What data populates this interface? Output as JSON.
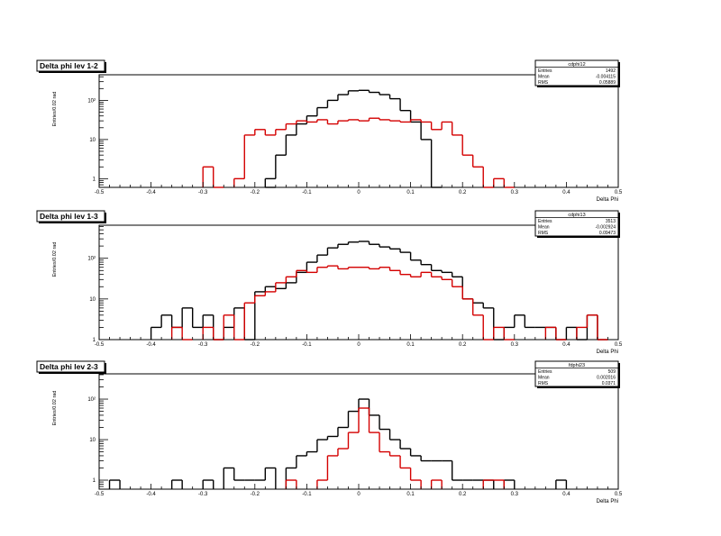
{
  "chart_data": [
    {
      "type": "histogram",
      "title": "Delta phi lev 1-2",
      "xlabel": "Delta Phi",
      "ylabel": "Entries/0.02 rad",
      "xlim": [
        -0.5,
        0.5
      ],
      "ylim": [
        0.6,
        450
      ],
      "yscale": "log",
      "bin_width": 0.02,
      "x_ticks": [
        "-0.5",
        "-0.4",
        "-0.3",
        "-0.2",
        "-0.1",
        "0",
        "0.1",
        "0.2",
        "0.3",
        "0.4",
        "0.5"
      ],
      "y_ticks": [
        {
          "v": 1,
          "label": "1"
        },
        {
          "v": 10,
          "label": "10"
        },
        {
          "v": 100,
          "label": "10²"
        }
      ],
      "stats": {
        "name": "cdphi12",
        "rows": [
          [
            "Entries",
            "1492"
          ],
          [
            "Mean",
            "-0.004115"
          ],
          [
            "RMS",
            "0.05889"
          ]
        ]
      },
      "series": [
        {
          "color": "#000000",
          "bins": [
            {
              "x0": -0.18,
              "y": 0.6
            },
            {
              "x0": -0.18,
              "y": 1
            },
            {
              "x0": -0.16,
              "y": 4
            },
            {
              "x0": -0.14,
              "y": 13
            },
            {
              "x0": -0.12,
              "y": 25
            },
            {
              "x0": -0.1,
              "y": 40
            },
            {
              "x0": -0.08,
              "y": 65
            },
            {
              "x0": -0.06,
              "y": 100
            },
            {
              "x0": -0.04,
              "y": 140
            },
            {
              "x0": -0.02,
              "y": 175
            },
            {
              "x0": 0.0,
              "y": 180
            },
            {
              "x0": 0.02,
              "y": 160
            },
            {
              "x0": 0.04,
              "y": 140
            },
            {
              "x0": 0.06,
              "y": 110
            },
            {
              "x0": 0.08,
              "y": 55
            },
            {
              "x0": 0.1,
              "y": 28
            },
            {
              "x0": 0.12,
              "y": 10
            },
            {
              "x0": 0.14,
              "y": 0.6
            }
          ]
        },
        {
          "color": "#d40000",
          "bins": [
            {
              "x0": -0.3,
              "y": 2
            },
            {
              "x0": -0.28,
              "y": 0.6
            },
            {
              "x0": -0.24,
              "y": 1
            },
            {
              "x0": -0.22,
              "y": 13
            },
            {
              "x0": -0.2,
              "y": 18
            },
            {
              "x0": -0.18,
              "y": 13
            },
            {
              "x0": -0.16,
              "y": 18
            },
            {
              "x0": -0.14,
              "y": 25
            },
            {
              "x0": -0.12,
              "y": 30
            },
            {
              "x0": -0.1,
              "y": 28
            },
            {
              "x0": -0.08,
              "y": 32
            },
            {
              "x0": -0.06,
              "y": 25
            },
            {
              "x0": -0.04,
              "y": 30
            },
            {
              "x0": -0.02,
              "y": 32
            },
            {
              "x0": 0.0,
              "y": 30
            },
            {
              "x0": 0.02,
              "y": 35
            },
            {
              "x0": 0.04,
              "y": 32
            },
            {
              "x0": 0.06,
              "y": 30
            },
            {
              "x0": 0.08,
              "y": 28
            },
            {
              "x0": 0.1,
              "y": 32
            },
            {
              "x0": 0.12,
              "y": 28
            },
            {
              "x0": 0.14,
              "y": 18
            },
            {
              "x0": 0.16,
              "y": 28
            },
            {
              "x0": 0.18,
              "y": 13
            },
            {
              "x0": 0.2,
              "y": 4
            },
            {
              "x0": 0.22,
              "y": 2
            },
            {
              "x0": 0.24,
              "y": 0.6
            },
            {
              "x0": 0.26,
              "y": 1
            },
            {
              "x0": 0.28,
              "y": 0.6
            }
          ]
        }
      ]
    },
    {
      "type": "histogram",
      "title": "Delta phi lev 1-3",
      "xlabel": "Delta Phi",
      "ylabel": "Entries/0.02 rad",
      "xlim": [
        -0.5,
        0.5
      ],
      "ylim": [
        1,
        650
      ],
      "yscale": "log",
      "bin_width": 0.02,
      "x_ticks": [
        "-0.5",
        "-0.4",
        "-0.3",
        "-0.2",
        "-0.1",
        "0",
        "0.1",
        "0.2",
        "0.3",
        "0.4",
        "0.5"
      ],
      "y_ticks": [
        {
          "v": 1,
          "label": "1"
        },
        {
          "v": 10,
          "label": "10"
        },
        {
          "v": 100,
          "label": "10²"
        }
      ],
      "stats": {
        "name": "cdphi13",
        "rows": [
          [
            "Entries",
            "3513"
          ],
          [
            "Mean",
            "-0.002924"
          ],
          [
            "RMS",
            "0.09473"
          ]
        ]
      },
      "series": [
        {
          "color": "#000000",
          "bins": [
            {
              "x0": -0.4,
              "y": 2
            },
            {
              "x0": -0.38,
              "y": 4
            },
            {
              "x0": -0.36,
              "y": 2
            },
            {
              "x0": -0.34,
              "y": 6
            },
            {
              "x0": -0.32,
              "y": 2
            },
            {
              "x0": -0.3,
              "y": 4
            },
            {
              "x0": -0.28,
              "y": 1
            },
            {
              "x0": -0.26,
              "y": 2
            },
            {
              "x0": -0.24,
              "y": 6
            },
            {
              "x0": -0.22,
              "y": 1
            },
            {
              "x0": -0.2,
              "y": 15
            },
            {
              "x0": -0.18,
              "y": 20
            },
            {
              "x0": -0.16,
              "y": 18
            },
            {
              "x0": -0.14,
              "y": 25
            },
            {
              "x0": -0.12,
              "y": 45
            },
            {
              "x0": -0.1,
              "y": 80
            },
            {
              "x0": -0.08,
              "y": 120
            },
            {
              "x0": -0.06,
              "y": 180
            },
            {
              "x0": -0.04,
              "y": 220
            },
            {
              "x0": -0.02,
              "y": 250
            },
            {
              "x0": 0.0,
              "y": 260
            },
            {
              "x0": 0.02,
              "y": 220
            },
            {
              "x0": 0.04,
              "y": 190
            },
            {
              "x0": 0.06,
              "y": 170
            },
            {
              "x0": 0.08,
              "y": 140
            },
            {
              "x0": 0.1,
              "y": 90
            },
            {
              "x0": 0.12,
              "y": 70
            },
            {
              "x0": 0.14,
              "y": 50
            },
            {
              "x0": 0.16,
              "y": 45
            },
            {
              "x0": 0.18,
              "y": 35
            },
            {
              "x0": 0.2,
              "y": 10
            },
            {
              "x0": 0.22,
              "y": 8
            },
            {
              "x0": 0.24,
              "y": 6
            },
            {
              "x0": 0.26,
              "y": 1
            },
            {
              "x0": 0.28,
              "y": 2
            },
            {
              "x0": 0.3,
              "y": 4
            },
            {
              "x0": 0.32,
              "y": 2
            },
            {
              "x0": 0.34,
              "y": 2
            },
            {
              "x0": 0.36,
              "y": 2
            },
            {
              "x0": 0.38,
              "y": 1
            },
            {
              "x0": 0.4,
              "y": 2
            },
            {
              "x0": 0.42,
              "y": 1
            },
            {
              "x0": 0.44,
              "y": 4
            },
            {
              "x0": 0.46,
              "y": 1
            }
          ]
        },
        {
          "color": "#d40000",
          "bins": [
            {
              "x0": -0.36,
              "y": 2
            },
            {
              "x0": -0.34,
              "y": 1
            },
            {
              "x0": -0.3,
              "y": 2
            },
            {
              "x0": -0.28,
              "y": 1
            },
            {
              "x0": -0.26,
              "y": 4
            },
            {
              "x0": -0.24,
              "y": 1
            },
            {
              "x0": -0.22,
              "y": 8
            },
            {
              "x0": -0.2,
              "y": 12
            },
            {
              "x0": -0.18,
              "y": 15
            },
            {
              "x0": -0.16,
              "y": 25
            },
            {
              "x0": -0.14,
              "y": 35
            },
            {
              "x0": -0.12,
              "y": 50
            },
            {
              "x0": -0.1,
              "y": 45
            },
            {
              "x0": -0.08,
              "y": 60
            },
            {
              "x0": -0.06,
              "y": 65
            },
            {
              "x0": -0.04,
              "y": 55
            },
            {
              "x0": -0.02,
              "y": 60
            },
            {
              "x0": 0.0,
              "y": 60
            },
            {
              "x0": 0.02,
              "y": 55
            },
            {
              "x0": 0.04,
              "y": 60
            },
            {
              "x0": 0.06,
              "y": 50
            },
            {
              "x0": 0.08,
              "y": 40
            },
            {
              "x0": 0.1,
              "y": 35
            },
            {
              "x0": 0.12,
              "y": 45
            },
            {
              "x0": 0.14,
              "y": 35
            },
            {
              "x0": 0.16,
              "y": 30
            },
            {
              "x0": 0.18,
              "y": 20
            },
            {
              "x0": 0.2,
              "y": 10
            },
            {
              "x0": 0.22,
              "y": 4
            },
            {
              "x0": 0.24,
              "y": 1
            },
            {
              "x0": 0.26,
              "y": 2
            },
            {
              "x0": 0.28,
              "y": 1
            },
            {
              "x0": 0.36,
              "y": 2
            },
            {
              "x0": 0.38,
              "y": 1
            },
            {
              "x0": 0.42,
              "y": 2
            },
            {
              "x0": 0.44,
              "y": 4
            },
            {
              "x0": 0.46,
              "y": 1
            }
          ]
        }
      ]
    },
    {
      "type": "histogram",
      "title": "Delta phi lev 2-3",
      "xlabel": "Delta Phi",
      "ylabel": "Entries/0.02 rad",
      "xlim": [
        -0.5,
        0.5
      ],
      "ylim": [
        0.6,
        420
      ],
      "yscale": "log",
      "bin_width": 0.02,
      "x_ticks": [
        "-0.5",
        "-0.4",
        "-0.3",
        "-0.2",
        "-0.1",
        "0",
        "0.1",
        "0.2",
        "0.3",
        "0.4",
        "0.5"
      ],
      "y_ticks": [
        {
          "v": 1,
          "label": "1"
        },
        {
          "v": 10,
          "label": "10"
        },
        {
          "v": 100,
          "label": "10²"
        }
      ],
      "stats": {
        "name": "fdphi23",
        "rows": [
          [
            "Entries",
            "509"
          ],
          [
            "Mean",
            "0.002016"
          ],
          [
            "RMS",
            "0.0371"
          ]
        ]
      },
      "series": [
        {
          "color": "#000000",
          "bins": [
            {
              "x0": -0.48,
              "y": 1
            },
            {
              "x0": -0.36,
              "y": 1
            },
            {
              "x0": -0.3,
              "y": 1
            },
            {
              "x0": -0.26,
              "y": 2
            },
            {
              "x0": -0.24,
              "y": 1
            },
            {
              "x0": -0.22,
              "y": 1
            },
            {
              "x0": -0.2,
              "y": 1
            },
            {
              "x0": -0.18,
              "y": 2
            },
            {
              "x0": -0.14,
              "y": 2
            },
            {
              "x0": -0.12,
              "y": 4
            },
            {
              "x0": -0.1,
              "y": 5
            },
            {
              "x0": -0.08,
              "y": 10
            },
            {
              "x0": -0.06,
              "y": 12
            },
            {
              "x0": -0.04,
              "y": 20
            },
            {
              "x0": -0.02,
              "y": 50
            },
            {
              "x0": 0.0,
              "y": 100
            },
            {
              "x0": 0.02,
              "y": 40
            },
            {
              "x0": 0.04,
              "y": 18
            },
            {
              "x0": 0.06,
              "y": 10
            },
            {
              "x0": 0.08,
              "y": 6
            },
            {
              "x0": 0.1,
              "y": 4
            },
            {
              "x0": 0.12,
              "y": 3
            },
            {
              "x0": 0.14,
              "y": 3
            },
            {
              "x0": 0.16,
              "y": 3
            },
            {
              "x0": 0.18,
              "y": 1
            },
            {
              "x0": 0.2,
              "y": 1
            },
            {
              "x0": 0.22,
              "y": 1
            },
            {
              "x0": 0.24,
              "y": 1
            },
            {
              "x0": 0.28,
              "y": 1
            },
            {
              "x0": 0.38,
              "y": 1
            }
          ]
        },
        {
          "color": "#d40000",
          "bins": [
            {
              "x0": -0.14,
              "y": 1
            },
            {
              "x0": -0.08,
              "y": 1
            },
            {
              "x0": -0.06,
              "y": 4
            },
            {
              "x0": -0.04,
              "y": 6
            },
            {
              "x0": -0.02,
              "y": 15
            },
            {
              "x0": 0.0,
              "y": 60
            },
            {
              "x0": 0.02,
              "y": 15
            },
            {
              "x0": 0.04,
              "y": 5
            },
            {
              "x0": 0.06,
              "y": 4
            },
            {
              "x0": 0.08,
              "y": 2
            },
            {
              "x0": 0.1,
              "y": 1
            },
            {
              "x0": 0.14,
              "y": 1
            },
            {
              "x0": 0.24,
              "y": 1
            },
            {
              "x0": 0.26,
              "y": 1
            }
          ]
        }
      ]
    }
  ]
}
